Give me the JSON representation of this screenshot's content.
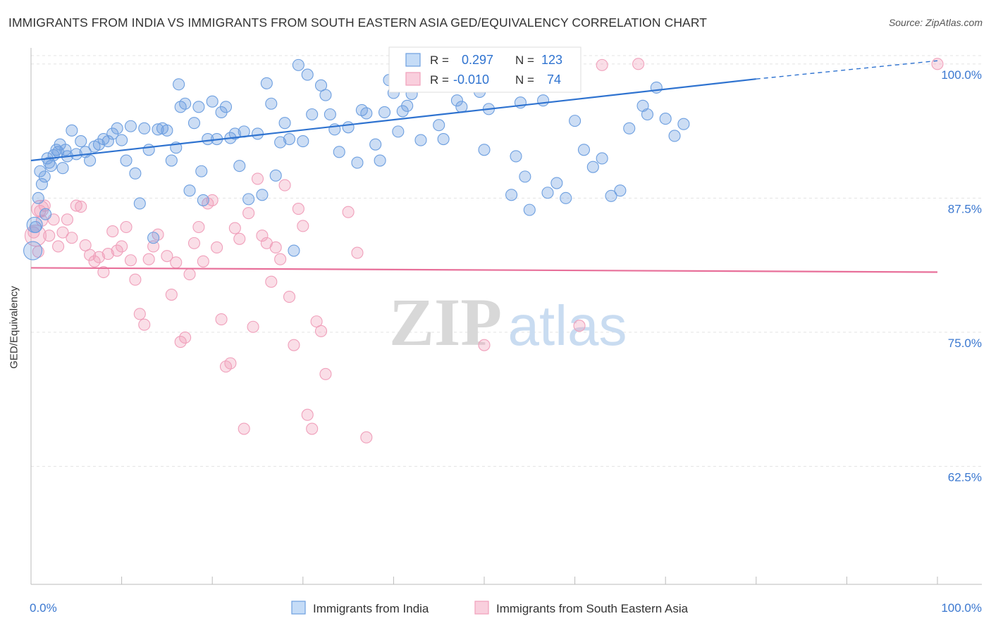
{
  "title": "IMMIGRANTS FROM INDIA VS IMMIGRANTS FROM SOUTH EASTERN ASIA GED/EQUIVALENCY CORRELATION CHART",
  "source": "Source: ZipAtlas.com",
  "watermark": {
    "zip": "ZIP",
    "atlas": "atlas"
  },
  "chart_data": {
    "type": "scatter",
    "title": "IMMIGRANTS FROM INDIA VS IMMIGRANTS FROM SOUTH EASTERN ASIA GED/EQUIVALENCY CORRELATION CHART",
    "xlabel": "",
    "ylabel": "GED/Equivalency",
    "xlim": [
      0,
      100
    ],
    "ylim": [
      51.5,
      101.5
    ],
    "x_tick_labels": [
      "0.0%",
      "100.0%"
    ],
    "y_ticks": [
      62.5,
      75.0,
      87.5,
      100.0
    ],
    "y_tick_labels": [
      "62.5%",
      "75.0%",
      "87.5%",
      "100.0%"
    ],
    "grid": true,
    "legend_position": "top-center",
    "series": [
      {
        "name": "Immigrants from India",
        "color": "#6d9fe0",
        "line_color": "#2f73d0",
        "R_label": "R =",
        "R": "0.297",
        "N_label": "N =",
        "N": "123",
        "trend": {
          "x0": 0,
          "y0": 91.0,
          "x1": 80,
          "y1": 98.6,
          "dash_to_x": 100,
          "dash_to_y": 100.3
        },
        "points": [
          [
            0.5,
            84.8
          ],
          [
            0.8,
            87.5
          ],
          [
            1.0,
            90.0
          ],
          [
            1.2,
            88.8
          ],
          [
            1.5,
            89.5
          ],
          [
            1.6,
            86.0
          ],
          [
            1.8,
            91.2
          ],
          [
            2.0,
            90.8
          ],
          [
            2.2,
            90.5
          ],
          [
            2.5,
            91.5
          ],
          [
            2.8,
            92.0
          ],
          [
            3.0,
            91.8
          ],
          [
            3.2,
            92.5
          ],
          [
            3.5,
            90.3
          ],
          [
            3.8,
            92.0
          ],
          [
            4.0,
            91.4
          ],
          [
            4.5,
            93.8
          ],
          [
            5.0,
            91.6
          ],
          [
            5.5,
            92.8
          ],
          [
            6.0,
            91.8
          ],
          [
            6.5,
            91.0
          ],
          [
            7.0,
            92.3
          ],
          [
            7.5,
            92.5
          ],
          [
            8.0,
            93.0
          ],
          [
            8.5,
            92.8
          ],
          [
            9.0,
            93.5
          ],
          [
            9.5,
            94.0
          ],
          [
            10.0,
            92.9
          ],
          [
            10.5,
            91.0
          ],
          [
            11.0,
            94.2
          ],
          [
            11.5,
            89.8
          ],
          [
            12.0,
            87.0
          ],
          [
            12.5,
            94.0
          ],
          [
            13.0,
            92.0
          ],
          [
            13.5,
            83.8
          ],
          [
            14.0,
            93.9
          ],
          [
            14.5,
            94.0
          ],
          [
            15.0,
            93.8
          ],
          [
            15.5,
            91.0
          ],
          [
            16.0,
            92.2
          ],
          [
            16.3,
            98.1
          ],
          [
            16.5,
            96.0
          ],
          [
            17.0,
            96.3
          ],
          [
            17.5,
            88.2
          ],
          [
            18.0,
            94.5
          ],
          [
            18.5,
            96.0
          ],
          [
            18.8,
            90.0
          ],
          [
            19.0,
            87.3
          ],
          [
            19.5,
            93.0
          ],
          [
            20.0,
            96.5
          ],
          [
            20.5,
            93.0
          ],
          [
            21.0,
            95.5
          ],
          [
            21.5,
            96.0
          ],
          [
            22.0,
            93.1
          ],
          [
            22.5,
            93.5
          ],
          [
            23.0,
            90.5
          ],
          [
            23.5,
            93.7
          ],
          [
            24.0,
            87.4
          ],
          [
            25.0,
            93.5
          ],
          [
            25.5,
            87.8
          ],
          [
            26.0,
            98.2
          ],
          [
            26.5,
            96.3
          ],
          [
            27.0,
            89.6
          ],
          [
            27.5,
            92.7
          ],
          [
            28.0,
            94.5
          ],
          [
            28.5,
            93.0
          ],
          [
            29.0,
            82.6
          ],
          [
            29.5,
            99.9
          ],
          [
            30.0,
            92.8
          ],
          [
            30.5,
            99.0
          ],
          [
            31.0,
            95.3
          ],
          [
            32.0,
            98.0
          ],
          [
            32.5,
            97.1
          ],
          [
            33.0,
            95.3
          ],
          [
            34.0,
            91.8
          ],
          [
            35.0,
            94.1
          ],
          [
            36.0,
            90.8
          ],
          [
            36.5,
            95.7
          ],
          [
            37.0,
            95.4
          ],
          [
            38.0,
            92.5
          ],
          [
            38.5,
            91.0
          ],
          [
            39.0,
            95.5
          ],
          [
            39.5,
            98.5
          ],
          [
            40.0,
            97.3
          ],
          [
            40.5,
            93.7
          ],
          [
            41.0,
            95.6
          ],
          [
            42.0,
            97.2
          ],
          [
            43.0,
            92.9
          ],
          [
            45.0,
            94.3
          ],
          [
            45.5,
            93.0
          ],
          [
            46.5,
            98.9
          ],
          [
            47.0,
            96.6
          ],
          [
            47.5,
            96.0
          ],
          [
            49.0,
            98.4
          ],
          [
            49.5,
            97.4
          ],
          [
            50.0,
            92.0
          ],
          [
            50.5,
            95.8
          ],
          [
            51.0,
            98.2
          ],
          [
            51.5,
            98.3
          ],
          [
            53.0,
            87.8
          ],
          [
            53.5,
            91.4
          ],
          [
            54.0,
            96.4
          ],
          [
            54.5,
            89.5
          ],
          [
            55.0,
            86.4
          ],
          [
            56.5,
            96.6
          ],
          [
            57.0,
            88.0
          ],
          [
            58.0,
            88.9
          ],
          [
            59.0,
            87.5
          ],
          [
            60.0,
            94.7
          ],
          [
            61.0,
            92.0
          ],
          [
            62.0,
            90.4
          ],
          [
            64.0,
            87.7
          ],
          [
            65.0,
            88.2
          ],
          [
            66.0,
            94.0
          ],
          [
            67.5,
            96.1
          ],
          [
            68.0,
            95.3
          ],
          [
            69.0,
            97.8
          ],
          [
            70.0,
            94.9
          ],
          [
            71.0,
            93.3
          ],
          [
            72.0,
            94.4
          ],
          [
            63.0,
            91.2
          ],
          [
            41.5,
            96.1
          ],
          [
            33.5,
            93.9
          ]
        ],
        "sizes": [
          14
        ]
      },
      {
        "name": "Immigrants from South Eastern Asia",
        "color": "#f0a0bb",
        "line_color": "#e8709a",
        "R_label": "R =",
        "R": "-0.010",
        "N_label": "N =",
        "N": "74",
        "trend": {
          "x0": 0,
          "y0": 81.0,
          "x1": 100,
          "y1": 80.6
        },
        "points": [
          [
            0.3,
            84.3
          ],
          [
            0.8,
            82.5
          ],
          [
            1.0,
            86.3
          ],
          [
            1.2,
            85.4
          ],
          [
            1.5,
            86.8
          ],
          [
            2.0,
            84.0
          ],
          [
            2.5,
            85.5
          ],
          [
            3.0,
            83.0
          ],
          [
            3.5,
            84.3
          ],
          [
            4.0,
            85.5
          ],
          [
            4.5,
            83.8
          ],
          [
            5.0,
            86.8
          ],
          [
            5.5,
            86.7
          ],
          [
            6.0,
            83.1
          ],
          [
            6.5,
            82.2
          ],
          [
            7.0,
            81.6
          ],
          [
            7.5,
            82.0
          ],
          [
            8.0,
            80.6
          ],
          [
            8.5,
            82.3
          ],
          [
            9.0,
            84.4
          ],
          [
            9.5,
            82.6
          ],
          [
            10.0,
            83.0
          ],
          [
            10.5,
            84.8
          ],
          [
            11.0,
            81.7
          ],
          [
            11.5,
            79.9
          ],
          [
            12.0,
            76.7
          ],
          [
            12.5,
            75.7
          ],
          [
            13.0,
            81.8
          ],
          [
            13.5,
            83.0
          ],
          [
            14.0,
            84.1
          ],
          [
            15.0,
            82.1
          ],
          [
            15.5,
            78.5
          ],
          [
            16.0,
            81.5
          ],
          [
            16.5,
            74.1
          ],
          [
            17.0,
            74.5
          ],
          [
            17.5,
            80.4
          ],
          [
            18.0,
            83.3
          ],
          [
            18.5,
            84.8
          ],
          [
            19.0,
            81.6
          ],
          [
            19.5,
            87.0
          ],
          [
            20.0,
            87.3
          ],
          [
            20.5,
            82.9
          ],
          [
            21.0,
            76.2
          ],
          [
            21.5,
            71.8
          ],
          [
            22.0,
            72.1
          ],
          [
            22.5,
            84.7
          ],
          [
            23.0,
            83.7
          ],
          [
            23.5,
            66.0
          ],
          [
            24.0,
            86.1
          ],
          [
            24.5,
            75.5
          ],
          [
            25.0,
            89.3
          ],
          [
            25.5,
            84.0
          ],
          [
            26.0,
            83.3
          ],
          [
            26.5,
            79.7
          ],
          [
            27.0,
            82.9
          ],
          [
            27.5,
            81.8
          ],
          [
            28.0,
            88.7
          ],
          [
            28.5,
            78.3
          ],
          [
            29.0,
            73.8
          ],
          [
            29.5,
            86.5
          ],
          [
            30.0,
            84.9
          ],
          [
            30.5,
            67.3
          ],
          [
            31.0,
            66.0
          ],
          [
            31.5,
            76.0
          ],
          [
            32.0,
            75.1
          ],
          [
            32.5,
            71.1
          ],
          [
            35.0,
            86.2
          ],
          [
            36.0,
            82.4
          ],
          [
            37.0,
            65.2
          ],
          [
            50.0,
            73.8
          ],
          [
            60.5,
            75.6
          ],
          [
            63.0,
            99.9
          ],
          [
            67.0,
            100.0
          ],
          [
            100.0,
            100.0
          ]
        ],
        "sizes": [
          14
        ]
      }
    ]
  }
}
